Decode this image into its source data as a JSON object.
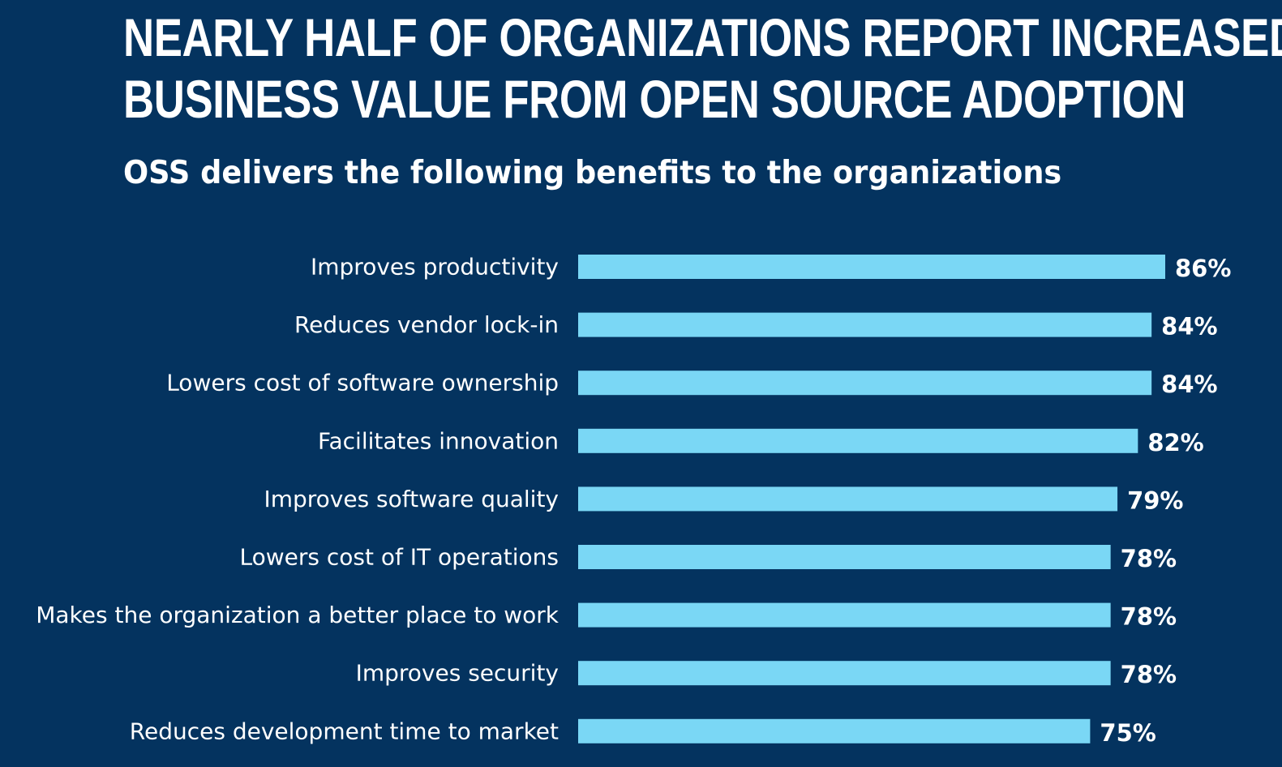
{
  "header": {
    "title_line1": "NEARLY HALF OF ORGANIZATIONS REPORT INCREASED",
    "title_line2": "BUSINESS VALUE FROM OPEN SOURCE ADOPTION",
    "subtitle": "OSS delivers the following benefits to the organizations"
  },
  "colors": {
    "background": "#04335f",
    "bar": "#7ad7f5",
    "text": "#ffffff"
  },
  "chart_data": {
    "type": "bar",
    "orientation": "horizontal",
    "title": "OSS delivers the following benefits to the organizations",
    "xlabel": "",
    "ylabel": "",
    "unit": "%",
    "xlim": [
      0,
      86
    ],
    "grid": false,
    "legend": "none",
    "categories": [
      "Improves productivity",
      "Reduces vendor lock-in",
      "Lowers cost of software ownership",
      "Facilitates innovation",
      "Improves software quality",
      "Lowers cost of IT operations",
      "Makes the organization a better place to work",
      "Improves security",
      "Reduces development time to market"
    ],
    "values": [
      86,
      84,
      84,
      82,
      79,
      78,
      78,
      78,
      75
    ],
    "value_labels": [
      "86%",
      "84%",
      "84%",
      "82%",
      "79%",
      "78%",
      "78%",
      "78%",
      "75%"
    ]
  }
}
